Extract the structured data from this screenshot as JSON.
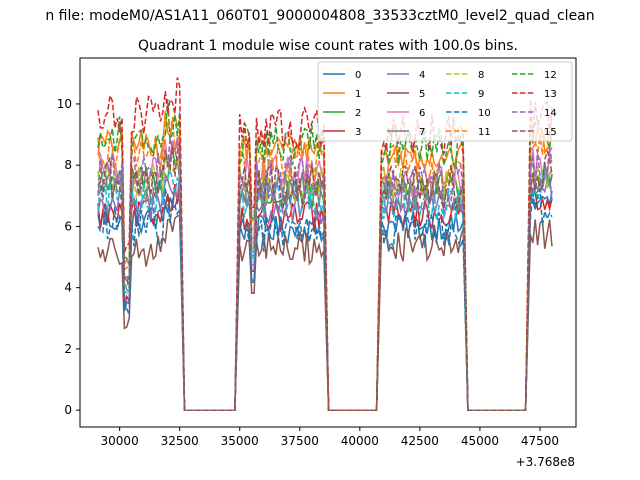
{
  "figure": {
    "suptitle": "n file: modeM0/AS1A11_060T01_9000004808_33533cztM0_level2_quad_clean"
  },
  "chart_data": {
    "type": "line",
    "title": "Quadrant 1 module wise count rates with 100.0s bins.",
    "xlabel": "",
    "ylabel": "",
    "x_offset_label": "+3.768e8",
    "xlim": [
      28350,
      49000
    ],
    "ylim": [
      -0.55,
      11.5
    ],
    "xticks": [
      30000,
      32500,
      35000,
      37500,
      40000,
      42500,
      45000,
      47500
    ],
    "xtick_labels": [
      "30000",
      "32500",
      "35000",
      "37500",
      "40000",
      "42500",
      "45000",
      "47500"
    ],
    "yticks": [
      0,
      2,
      4,
      6,
      8,
      10
    ],
    "ytick_labels": [
      "0",
      "2",
      "4",
      "6",
      "8",
      "10"
    ],
    "grid": false,
    "legend": {
      "placement": "top-right",
      "columns": 4
    },
    "active_intervals": [
      [
        29100,
        32500
      ],
      [
        35000,
        38500
      ],
      [
        40900,
        44300
      ],
      [
        47100,
        48000
      ]
    ],
    "gaps": [
      [
        32700,
        34800
      ],
      [
        38700,
        40700
      ],
      [
        44500,
        46900
      ]
    ],
    "bin_seconds": 100,
    "series": [
      {
        "name": "0",
        "color": "#1f77b4",
        "dash": "solid",
        "levels": [
          6.2,
          5.9,
          6.0,
          6.8
        ]
      },
      {
        "name": "1",
        "color": "#ff7f0e",
        "dash": "solid",
        "levels": [
          8.7,
          8.6,
          8.3,
          8.8
        ]
      },
      {
        "name": "2",
        "color": "#2ca02c",
        "dash": "solid",
        "levels": [
          7.6,
          7.0,
          7.3,
          7.6
        ]
      },
      {
        "name": "3",
        "color": "#d62728",
        "dash": "solid",
        "levels": [
          6.4,
          6.3,
          6.4,
          7.0
        ]
      },
      {
        "name": "4",
        "color": "#9467bd",
        "dash": "solid",
        "levels": [
          6.7,
          6.6,
          6.7,
          7.1
        ]
      },
      {
        "name": "5",
        "color": "#8c564b",
        "dash": "solid",
        "levels": [
          5.2,
          5.3,
          5.4,
          5.8
        ]
      },
      {
        "name": "6",
        "color": "#e377c2",
        "dash": "solid",
        "levels": [
          7.9,
          7.8,
          7.5,
          8.1
        ]
      },
      {
        "name": "7",
        "color": "#7f7f7f",
        "dash": "solid",
        "levels": [
          7.3,
          7.2,
          7.1,
          7.5
        ]
      },
      {
        "name": "8",
        "color": "#bcbd22",
        "dash": "dashed",
        "levels": [
          7.5,
          7.4,
          7.3,
          7.7
        ]
      },
      {
        "name": "9",
        "color": "#17becf",
        "dash": "dashed",
        "levels": [
          7.0,
          6.9,
          6.8,
          7.3
        ]
      },
      {
        "name": "10",
        "color": "#1f77b4",
        "dash": "dashed",
        "levels": [
          6.0,
          5.8,
          5.9,
          6.6
        ]
      },
      {
        "name": "11",
        "color": "#ff7f0e",
        "dash": "dashed",
        "levels": [
          8.4,
          8.2,
          8.0,
          8.6
        ]
      },
      {
        "name": "12",
        "color": "#2ca02c",
        "dash": "dashed",
        "levels": [
          8.9,
          8.7,
          8.6,
          9.0
        ]
      },
      {
        "name": "13",
        "color": "#d62728",
        "dash": "dashed",
        "levels": [
          9.6,
          9.2,
          9.0,
          9.5
        ]
      },
      {
        "name": "14",
        "color": "#9467bd",
        "dash": "dashed",
        "levels": [
          7.7,
          7.6,
          7.4,
          7.9
        ]
      },
      {
        "name": "15",
        "color": "#8c564b",
        "dash": "dashed",
        "levels": [
          7.5,
          7.3,
          7.3,
          7.7
        ]
      }
    ]
  }
}
